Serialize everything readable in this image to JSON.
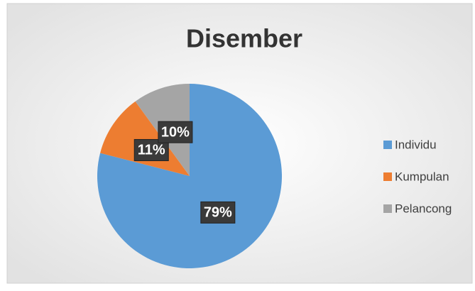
{
  "chart_data": {
    "type": "pie",
    "title": "Disember",
    "categories": [
      "Individu",
      "Kumpulan",
      "Pelancong"
    ],
    "values": [
      79,
      11,
      10
    ],
    "value_labels": [
      "79%",
      "11%",
      "10%"
    ],
    "colors": [
      "#5b9bd5",
      "#ed7d31",
      "#a5a5a5"
    ],
    "legend": "right"
  }
}
